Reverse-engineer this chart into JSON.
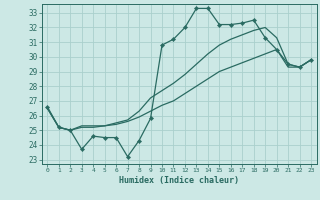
{
  "xlabel": "Humidex (Indice chaleur)",
  "bg_color": "#cce8e5",
  "grid_color": "#aad0cc",
  "line_color": "#2a6b62",
  "xlim": [
    -0.5,
    23.5
  ],
  "ylim": [
    22.7,
    33.6
  ],
  "yticks": [
    23,
    24,
    25,
    26,
    27,
    28,
    29,
    30,
    31,
    32,
    33
  ],
  "xticks": [
    0,
    1,
    2,
    3,
    4,
    5,
    6,
    7,
    8,
    9,
    10,
    11,
    12,
    13,
    14,
    15,
    16,
    17,
    18,
    19,
    20,
    21,
    22,
    23
  ],
  "line1_x": [
    0,
    1,
    2,
    3,
    4,
    5,
    6,
    7,
    8,
    9,
    10,
    11,
    12,
    13,
    14,
    15,
    16,
    17,
    18,
    19,
    20,
    21,
    22,
    23
  ],
  "line1_y": [
    26.6,
    25.2,
    25.0,
    23.7,
    24.6,
    24.5,
    24.5,
    23.2,
    24.3,
    25.8,
    30.8,
    31.2,
    32.0,
    33.3,
    33.3,
    32.2,
    32.2,
    32.3,
    32.5,
    31.3,
    30.5,
    29.5,
    29.3,
    29.8
  ],
  "line2_x": [
    0,
    1,
    2,
    3,
    4,
    5,
    6,
    7,
    8,
    9,
    10,
    11,
    12,
    13,
    14,
    15,
    16,
    17,
    18,
    19,
    20,
    21,
    22,
    23
  ],
  "line2_y": [
    26.5,
    25.2,
    25.0,
    25.3,
    25.3,
    25.3,
    25.5,
    25.7,
    26.3,
    27.2,
    27.7,
    28.2,
    28.8,
    29.5,
    30.2,
    30.8,
    31.2,
    31.5,
    31.8,
    32.0,
    31.3,
    29.5,
    29.3,
    29.8
  ],
  "line3_x": [
    0,
    1,
    2,
    3,
    4,
    5,
    6,
    7,
    8,
    9,
    10,
    11,
    12,
    13,
    14,
    15,
    16,
    17,
    18,
    19,
    20,
    21,
    22,
    23
  ],
  "line3_y": [
    26.5,
    25.2,
    25.0,
    25.2,
    25.2,
    25.3,
    25.4,
    25.6,
    25.9,
    26.3,
    26.7,
    27.0,
    27.5,
    28.0,
    28.5,
    29.0,
    29.3,
    29.6,
    29.9,
    30.2,
    30.5,
    29.3,
    29.3,
    29.8
  ]
}
